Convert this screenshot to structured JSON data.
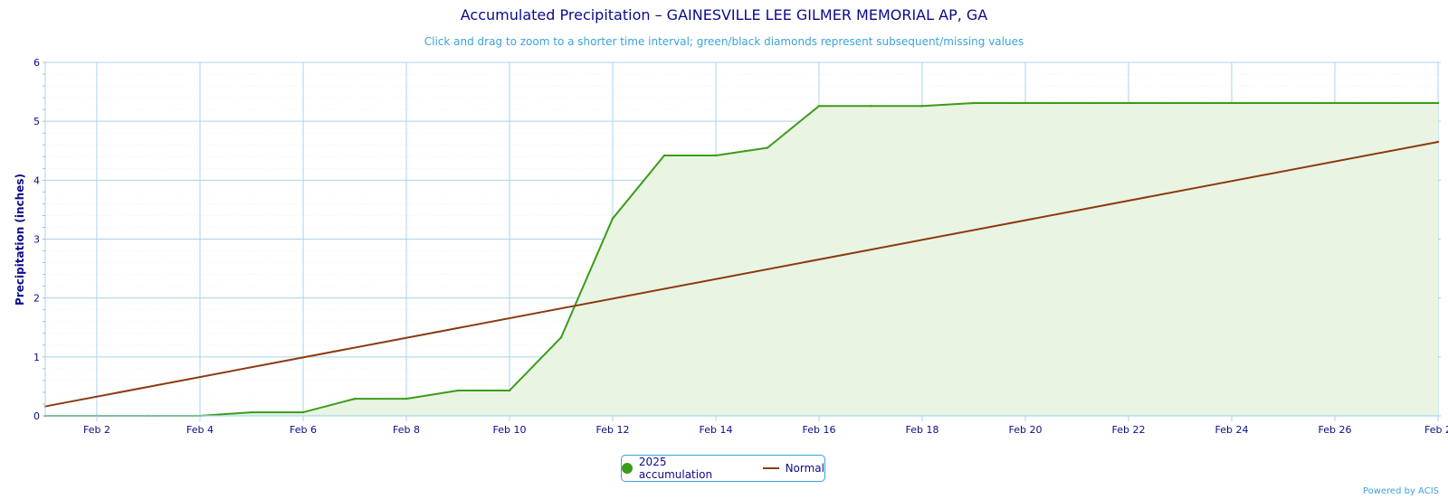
{
  "colors": {
    "accumulation": "#3a9c1a",
    "accumulation_fill": "#eaf4e3",
    "normal": "#8b3a0f",
    "grid": "#a8d5ea",
    "text": "#0b0b8a",
    "subtitle": "#3aa3d8"
  },
  "chart_data": {
    "type": "line",
    "title": "Accumulated Precipitation – GAINESVILLE LEE GILMER MEMORIAL AP, GA",
    "subtitle": "Click and drag to zoom to a shorter time interval; green/black diamonds represent subsequent/missing values",
    "ylabel": "Precipitation (inches)",
    "xlabel": "",
    "ylim": [
      0,
      6
    ],
    "yticks": [
      0,
      1,
      2,
      3,
      4,
      5,
      6
    ],
    "xlim": [
      "Feb 1",
      "Feb 28"
    ],
    "xticks": [
      "Feb 2",
      "Feb 4",
      "Feb 6",
      "Feb 8",
      "Feb 10",
      "Feb 12",
      "Feb 14",
      "Feb 16",
      "Feb 18",
      "Feb 20",
      "Feb 22",
      "Feb 24",
      "Feb 26",
      "Feb 2"
    ],
    "grid": true,
    "legend_position": "bottom-center",
    "series": [
      {
        "name": "2025 accumulation",
        "style": "area",
        "x": [
          "Feb 1",
          "Feb 2",
          "Feb 3",
          "Feb 4",
          "Feb 5",
          "Feb 6",
          "Feb 7",
          "Feb 8",
          "Feb 9",
          "Feb 10",
          "Feb 11",
          "Feb 12",
          "Feb 13",
          "Feb 14",
          "Feb 15",
          "Feb 16",
          "Feb 17",
          "Feb 18",
          "Feb 19",
          "Feb 20",
          "Feb 21",
          "Feb 22",
          "Feb 23",
          "Feb 24",
          "Feb 25",
          "Feb 26",
          "Feb 27",
          "Feb 28"
        ],
        "values": [
          0,
          0,
          0,
          0,
          0.06,
          0.06,
          0.29,
          0.29,
          0.43,
          0.43,
          1.33,
          3.35,
          4.42,
          4.42,
          4.55,
          5.26,
          5.26,
          5.26,
          5.31,
          5.31,
          5.31,
          5.31,
          5.31,
          5.31,
          5.31,
          5.31,
          5.31,
          5.31
        ]
      },
      {
        "name": "Normal",
        "style": "line",
        "x": [
          "Feb 1",
          "Feb 28"
        ],
        "values": [
          0.16,
          4.65
        ]
      }
    ]
  },
  "legend": {
    "items": [
      {
        "label": "2025 accumulation",
        "marker": "dot"
      },
      {
        "label": "Normal",
        "marker": "line"
      }
    ]
  },
  "credits": "Powered by ACIS"
}
